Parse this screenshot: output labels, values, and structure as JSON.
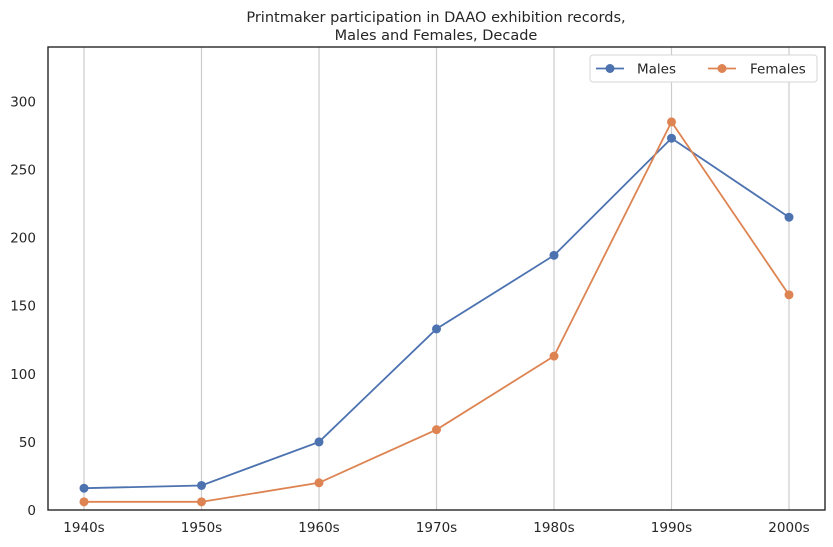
{
  "chart_data": {
    "type": "line",
    "title_lines": [
      "Printmaker participation in DAAO exhibition records,",
      "Males and Females, Decade"
    ],
    "xlabel": "",
    "ylabel": "",
    "categories": [
      "1940s",
      "1950s",
      "1960s",
      "1970s",
      "1980s",
      "1990s",
      "2000s"
    ],
    "y_ticks": [
      0,
      50,
      100,
      150,
      200,
      250,
      300
    ],
    "ylim": [
      0,
      340
    ],
    "grid": "vertical",
    "legend_position": "top-right",
    "series": [
      {
        "name": "Males",
        "color": "#4c72b0",
        "values": [
          16,
          18,
          50,
          133,
          187,
          273,
          215
        ]
      },
      {
        "name": "Females",
        "color": "#dd8452",
        "values": [
          6,
          6,
          20,
          59,
          113,
          285,
          158
        ]
      }
    ]
  }
}
